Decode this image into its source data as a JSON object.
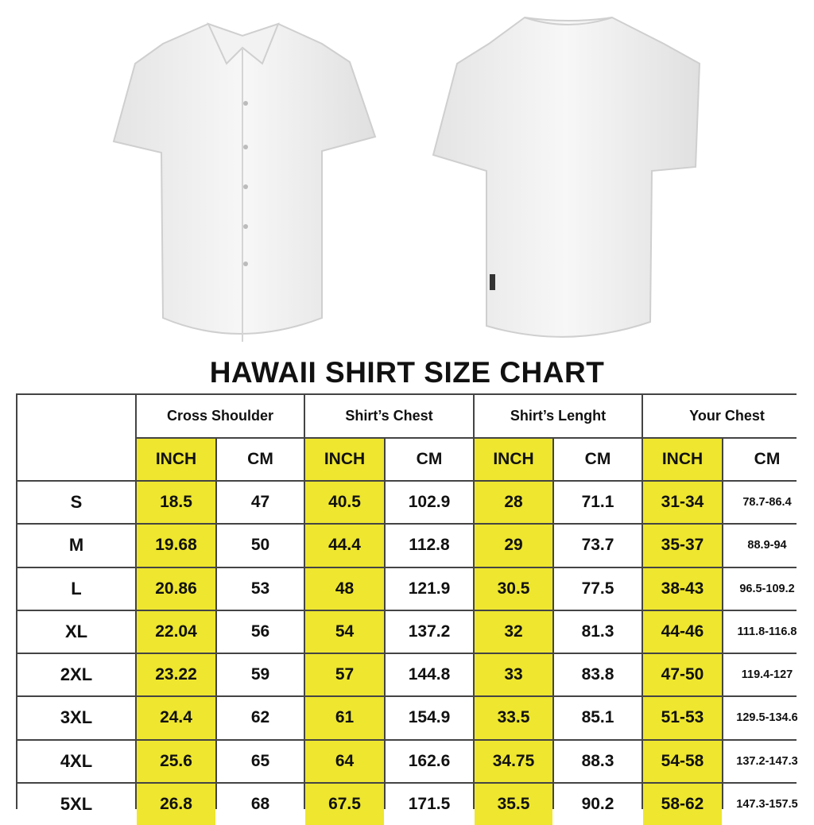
{
  "title": "HAWAII SHIRT SIZE CHART",
  "colors": {
    "highlight": "#eee62f",
    "border": "#444444"
  },
  "images": {
    "front": "white short-sleeve shirt front",
    "back": "white short-sleeve shirt back"
  },
  "groups": [
    "Cross Shoulder",
    "Shirt’s Chest",
    "Shirt’s Lenght",
    "Your Chest"
  ],
  "units": [
    "INCH",
    "CM",
    "INCH",
    "CM",
    "INCH",
    "CM",
    "INCH",
    "CM"
  ],
  "rows": [
    {
      "size": "S",
      "values": [
        "18.5",
        "47",
        "40.5",
        "102.9",
        "28",
        "71.1",
        "31-34",
        "78.7-86.4"
      ]
    },
    {
      "size": "M",
      "values": [
        "19.68",
        "50",
        "44.4",
        "112.8",
        "29",
        "73.7",
        "35-37",
        "88.9-94"
      ]
    },
    {
      "size": "L",
      "values": [
        "20.86",
        "53",
        "48",
        "121.9",
        "30.5",
        "77.5",
        "38-43",
        "96.5-109.2"
      ]
    },
    {
      "size": "XL",
      "values": [
        "22.04",
        "56",
        "54",
        "137.2",
        "32",
        "81.3",
        "44-46",
        "111.8-116.8"
      ]
    },
    {
      "size": "2XL",
      "values": [
        "23.22",
        "59",
        "57",
        "144.8",
        "33",
        "83.8",
        "47-50",
        "119.4-127"
      ]
    },
    {
      "size": "3XL",
      "values": [
        "24.4",
        "62",
        "61",
        "154.9",
        "33.5",
        "85.1",
        "51-53",
        "129.5-134.6"
      ]
    },
    {
      "size": "4XL",
      "values": [
        "25.6",
        "65",
        "64",
        "162.6",
        "34.75",
        "88.3",
        "54-58",
        "137.2-147.3"
      ]
    },
    {
      "size": "5XL",
      "values": [
        "26.8",
        "68",
        "67.5",
        "171.5",
        "35.5",
        "90.2",
        "58-62",
        "147.3-157.5"
      ]
    }
  ]
}
